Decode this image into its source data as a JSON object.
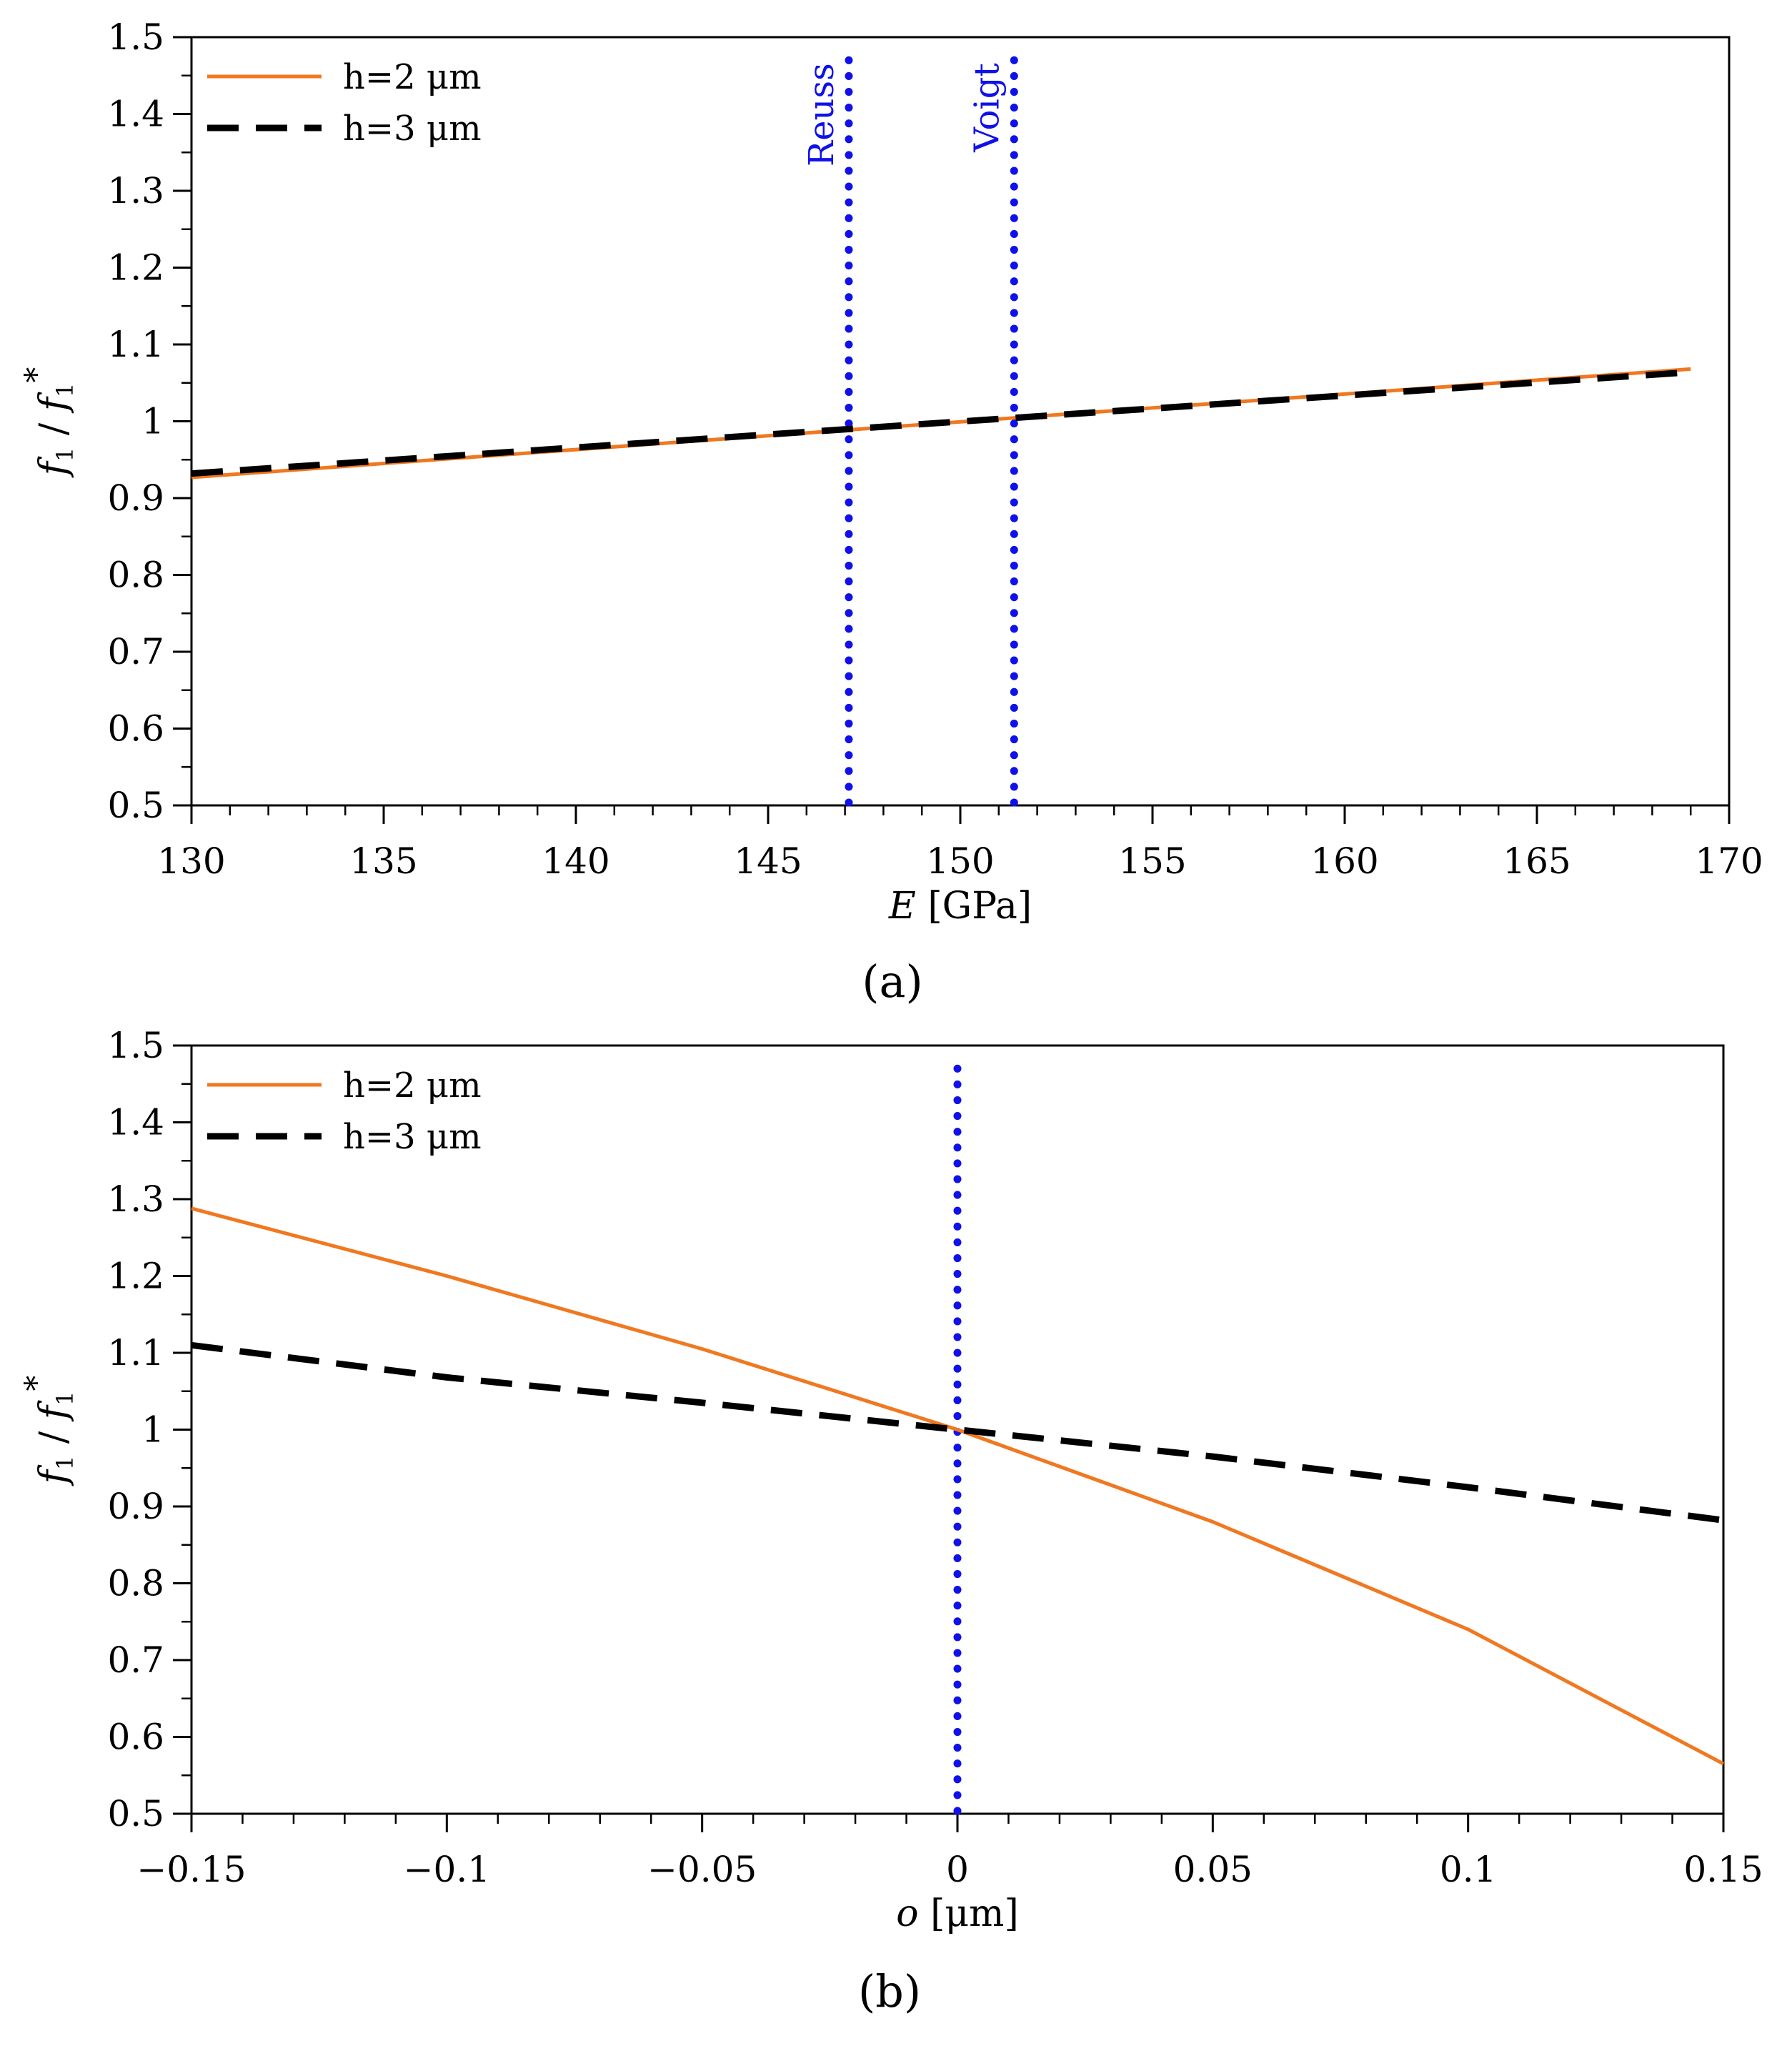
{
  "chart_data": [
    {
      "type": "line",
      "panel_label": "(a)",
      "xlabel": "E [GPa]",
      "ylabel": "f1 / f1*",
      "xlim": [
        130,
        170
      ],
      "ylim": [
        0.5,
        1.5
      ],
      "xticks": [
        "130",
        "135",
        "140",
        "145",
        "150",
        "155",
        "160",
        "165",
        "170"
      ],
      "yticks": [
        "0.5",
        "0.6",
        "0.7",
        "0.8",
        "0.9",
        "1",
        "1.1",
        "1.2",
        "1.3",
        "1.4",
        "1.5"
      ],
      "legend": {
        "position": "top-left"
      },
      "series": [
        {
          "name": "h=2 μm",
          "color": "#f07820",
          "style": "solid",
          "x": [
            130,
            169
          ],
          "y": [
            0.927,
            1.068
          ]
        },
        {
          "name": "h=3 μm",
          "color": "#000000",
          "style": "dashed",
          "x": [
            130,
            169
          ],
          "y": [
            0.932,
            1.064
          ]
        }
      ],
      "vlines": [
        {
          "x": 147.1,
          "label": "Reuss",
          "color": "#1010e8",
          "ymax": 1.47
        },
        {
          "x": 151.4,
          "label": "Voigt",
          "color": "#1010e8",
          "ymax": 1.47
        }
      ]
    },
    {
      "type": "line",
      "panel_label": "(b)",
      "xlabel": "o [μm]",
      "ylabel": "f1 / f1*",
      "xlim": [
        -0.15,
        0.15
      ],
      "ylim": [
        0.5,
        1.5
      ],
      "xticks": [
        "−0.15",
        "−0.1",
        "−0.05",
        "0",
        "0.05",
        "0.1",
        "0.15"
      ],
      "yticks": [
        "0.5",
        "0.6",
        "0.7",
        "0.8",
        "0.9",
        "1",
        "1.1",
        "1.2",
        "1.3",
        "1.4",
        "1.5"
      ],
      "legend": {
        "position": "top-left"
      },
      "series": [
        {
          "name": "h=2 μm",
          "color": "#f07820",
          "style": "solid",
          "x": [
            -0.15,
            -0.1,
            -0.05,
            0,
            0.05,
            0.1,
            0.15
          ],
          "y": [
            1.288,
            1.2,
            1.105,
            1.0,
            0.88,
            0.74,
            0.565
          ]
        },
        {
          "name": "h=3 μm",
          "color": "#000000",
          "style": "dashed",
          "x": [
            -0.15,
            -0.1,
            -0.05,
            0,
            0.05,
            0.1,
            0.15
          ],
          "y": [
            1.11,
            1.068,
            1.035,
            1.0,
            0.965,
            0.925,
            0.882
          ]
        }
      ],
      "vlines": [
        {
          "x": 0,
          "label": "",
          "color": "#1010e8",
          "ymax": 1.47
        }
      ]
    }
  ]
}
